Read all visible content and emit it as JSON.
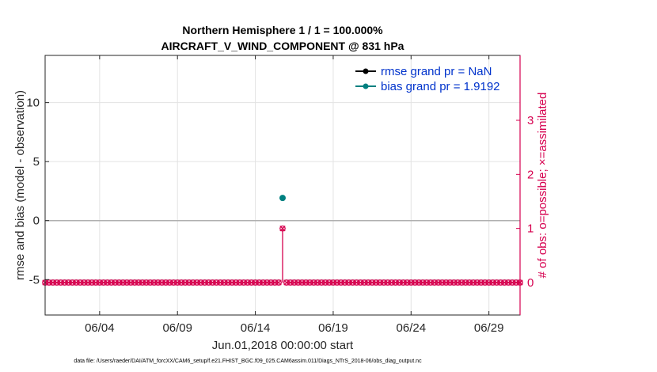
{
  "chart_data": {
    "type": "scatter",
    "title_lines": [
      "Northern Hemisphere 1 / 1 = 100.000%",
      "AIRCRAFT_V_WIND_COMPONENT @ 831 hPa"
    ],
    "xlabel": "Jun.01,2018 00:00:00 start",
    "ylabel": "rmse and bias (model - observation)",
    "y2label": "# of obs: o=possible; ×=assimilated",
    "xlim": [
      0.5,
      31.0
    ],
    "ylim": [
      -8,
      14
    ],
    "y2lim": [
      -0.6,
      4.2
    ],
    "xticks": [
      4,
      9,
      14,
      19,
      24,
      29
    ],
    "xtick_labels": [
      "06/04",
      "06/09",
      "06/14",
      "06/19",
      "06/24",
      "06/29"
    ],
    "yticks": [
      -5,
      0,
      5,
      10
    ],
    "ytick_labels": [
      "-5",
      "0",
      "5",
      "10"
    ],
    "y2ticks": [
      0,
      1,
      2,
      3
    ],
    "y2tick_labels": [
      "0",
      "1",
      "2",
      "3"
    ],
    "zero_line": 0,
    "grid": true,
    "legend_position": "top-right",
    "series": [
      {
        "name": "rmse grand pr = NaN",
        "color": "#000000",
        "x": [],
        "y": []
      },
      {
        "name": "bias grand pr = 1.9192",
        "color": "#008080",
        "x": [
          15.75
        ],
        "y": [
          1.9192
        ]
      }
    ],
    "obs_count": {
      "color": "#d6004f",
      "x_start": 0.5,
      "x_end": 31.0,
      "step": 0.25,
      "nonzero_x": [
        15.75
      ],
      "nonzero_value": 1,
      "default_value": 0
    },
    "footnote": "data file: /Users/raeder/DAI/ATM_forcXX/CAM6_setup/f.e21.FHIST_BGC.f09_025.CAM6assim.011/Diags_NTrS_2018-06/obs_diag_output.nc"
  }
}
